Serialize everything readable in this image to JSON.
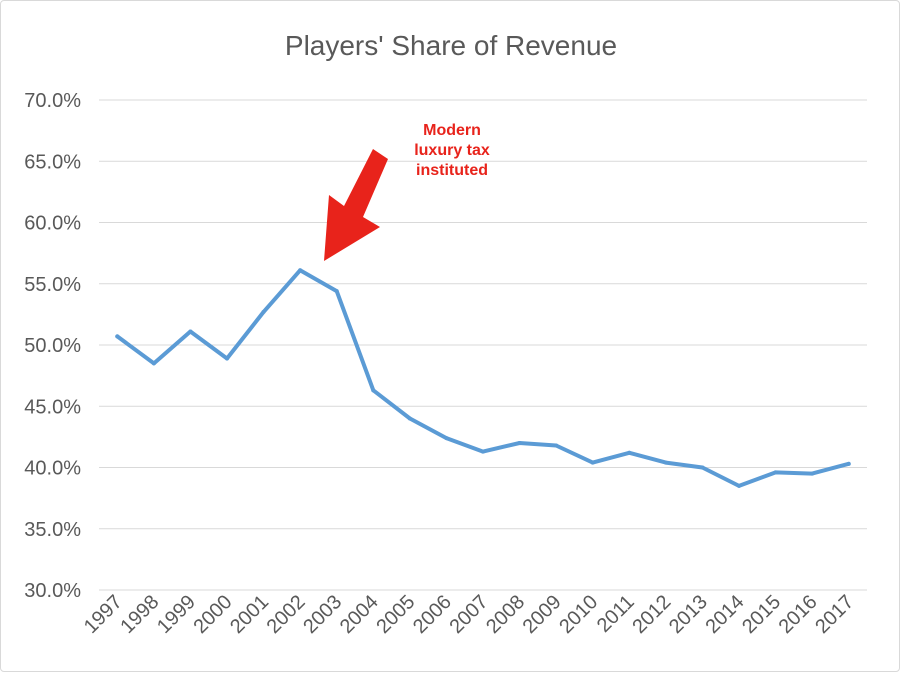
{
  "chart_data": {
    "type": "line",
    "title": "Players' Share of Revenue",
    "xlabel": "",
    "ylabel": "",
    "categories": [
      "1997",
      "1998",
      "1999",
      "2000",
      "2001",
      "2002",
      "2003",
      "2004",
      "2005",
      "2006",
      "2007",
      "2008",
      "2009",
      "2010",
      "2011",
      "2012",
      "2013",
      "2014",
      "2015",
      "2016",
      "2017"
    ],
    "series": [
      {
        "values": [
          50.7,
          48.5,
          51.1,
          48.9,
          52.7,
          56.1,
          54.4,
          46.3,
          44.0,
          42.4,
          41.3,
          42.0,
          41.8,
          40.4,
          41.2,
          40.4,
          40.0,
          38.5,
          39.6,
          39.5,
          40.3
        ],
        "color": "#5b9bd5"
      }
    ],
    "ylim": [
      30,
      70
    ],
    "y_ticks": [
      30,
      35,
      40,
      45,
      50,
      55,
      60,
      65,
      70
    ],
    "y_tick_labels": [
      "30.0%",
      "35.0%",
      "40.0%",
      "45.0%",
      "50.0%",
      "55.0%",
      "60.0%",
      "65.0%",
      "70.0%"
    ],
    "grid": true,
    "gridline_color": "#d9d9d9",
    "annotation": {
      "lines": [
        "Modern",
        "luxury tax",
        "instituted"
      ],
      "color": "#e8231b",
      "points_to_category": "2002"
    }
  }
}
